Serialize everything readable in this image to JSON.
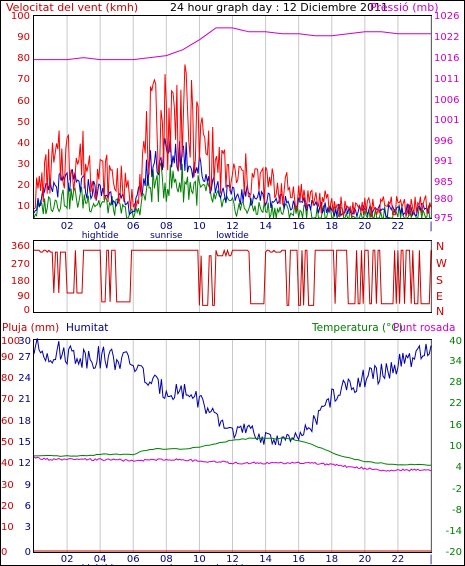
{
  "header": {
    "wind_title": "Velocitat del vent (kmh)",
    "graph_title": "24 hour graph day : 12 Diciembre 2011",
    "pressure_title": "Pressió (mb)"
  },
  "colors": {
    "wind_gust": "#ff0000",
    "wind_avg": "#0000cc",
    "wind_min": "#008000",
    "pressure": "#cc00cc",
    "direction": "#cc0000",
    "humidity": "#0000aa",
    "temperature": "#008000",
    "dewpoint": "#cc00cc",
    "rain": "#cc0000",
    "grid": "#c8c8c8",
    "frame": "#000000"
  },
  "x_axis": {
    "ticks": [
      "02",
      "04",
      "06",
      "08",
      "10",
      "12",
      "14",
      "16",
      "18",
      "20",
      "22",
      "|"
    ],
    "events": [
      {
        "label": "hightide",
        "at": "04"
      },
      {
        "label": "sunrise",
        "at": "08"
      },
      {
        "label": "lowtide",
        "at": "12"
      }
    ]
  },
  "chart_data": [
    {
      "type": "line",
      "title": "24 hour graph day : 12 Diciembre 2011",
      "left_axis_label": "Velocitat del vent (kmh)",
      "right_axis_label": "Pressió (mb)",
      "left_ticks": [
        "100",
        "90",
        "80",
        "70",
        "60",
        "50",
        "40",
        "30",
        "20",
        "10"
      ],
      "right_ticks": [
        "1026",
        "1022",
        "1016",
        "1011",
        "1006",
        "1001",
        "996",
        "991",
        "985",
        "980",
        "975"
      ],
      "ylim_left": [
        5,
        100
      ],
      "ylim_right": [
        975,
        1026
      ],
      "x_hours": [
        0,
        1,
        2,
        3,
        4,
        5,
        6,
        7,
        8,
        9,
        10,
        11,
        12,
        13,
        14,
        15,
        16,
        17,
        18,
        19,
        20,
        21,
        22,
        23,
        24
      ],
      "series": [
        {
          "key": "gust",
          "values": [
            15,
            28,
            34,
            32,
            25,
            23,
            13,
            45,
            52,
            53,
            42,
            30,
            23,
            24,
            21,
            19,
            16,
            14,
            11,
            10,
            10,
            10,
            11,
            11,
            11
          ]
        },
        {
          "key": "avg",
          "values": [
            10,
            19,
            22,
            20,
            17,
            15,
            8,
            30,
            35,
            36,
            28,
            20,
            15,
            16,
            14,
            13,
            12,
            10,
            9,
            8,
            8,
            8,
            9,
            9,
            9
          ]
        },
        {
          "key": "min",
          "values": [
            7,
            13,
            15,
            14,
            12,
            10,
            5,
            20,
            22,
            22,
            18,
            13,
            10,
            10,
            9,
            8,
            8,
            7,
            6,
            6,
            6,
            6,
            7,
            7,
            7
          ]
        },
        {
          "key": "pressure",
          "values": [
            1015,
            1015,
            1015,
            1015.5,
            1015,
            1015,
            1015,
            1015.5,
            1016,
            1017.5,
            1020,
            1023,
            1023,
            1022,
            1022,
            1021.5,
            1021.5,
            1021,
            1021,
            1021.5,
            1022,
            1022,
            1021.5,
            1021.5,
            1021.5
          ]
        }
      ]
    },
    {
      "type": "line",
      "left_ticks": [
        "360",
        "270",
        "180",
        "90",
        "0"
      ],
      "right_ticks": [
        "N",
        "W",
        "S",
        "E",
        "N"
      ],
      "ylim": [
        0,
        360
      ],
      "series": [
        {
          "key": "direction",
          "values": [
            330,
            320,
            90,
            330,
            330,
            40,
            330,
            330,
            330,
            330,
            20,
            300,
            330,
            30,
            320,
            330,
            20,
            330,
            330,
            30,
            330,
            30,
            330,
            30,
            330
          ]
        }
      ]
    },
    {
      "type": "line",
      "left_axis_label": "Pluja (mm)",
      "left2_axis_label": "Humitat",
      "right_axis_label": "Temperatura (°C)",
      "right2_axis_label": "Punt rosada",
      "rain_ticks": [
        "100",
        "90",
        "80",
        "70",
        "60",
        "50",
        "40",
        "30",
        "20",
        "10",
        "0"
      ],
      "humidity_ticks": [
        "30",
        "27",
        "24",
        "21",
        "18",
        "15",
        "12",
        "9",
        "6",
        "3",
        "0"
      ],
      "temp_ticks": [
        "40",
        "34",
        "28",
        "22",
        "16",
        "10",
        "4",
        "-2",
        "-8",
        "-14",
        "-20"
      ],
      "ylim_rain": [
        0,
        100
      ],
      "ylim_humidity": [
        0,
        30
      ],
      "ylim_temp": [
        -20,
        40
      ],
      "series": [
        {
          "key": "humidity",
          "values": [
            96,
            94,
            94,
            92,
            92,
            91,
            89,
            80,
            76,
            76,
            72,
            62,
            57,
            57,
            53,
            53,
            53,
            62,
            73,
            78,
            82,
            84,
            88,
            91,
            94
          ]
        },
        {
          "key": "temperature",
          "values": [
            7,
            7,
            7,
            7,
            7.5,
            7.5,
            7.5,
            9,
            9,
            9,
            9.5,
            10.5,
            11.5,
            12,
            12,
            12,
            11.5,
            10,
            8,
            6.5,
            5.5,
            5,
            4.5,
            4.5,
            4.5
          ]
        },
        {
          "key": "dewpoint",
          "values": [
            6.5,
            6,
            6,
            6,
            6,
            6,
            5.5,
            6,
            6,
            6,
            5.5,
            5.5,
            5,
            5,
            5,
            5,
            5,
            5,
            4.5,
            4,
            3.5,
            3,
            3,
            3,
            3
          ]
        },
        {
          "key": "rain",
          "values": [
            0,
            0,
            0,
            0,
            0,
            0,
            0,
            0,
            0,
            0,
            0,
            0,
            0,
            0,
            0,
            0,
            0,
            0,
            0,
            0,
            0,
            0,
            0,
            0,
            0
          ]
        }
      ]
    }
  ],
  "panel2": {
    "left_ticks": [
      "360",
      "270",
      "180",
      "90",
      "0"
    ],
    "right_ticks": [
      "N",
      "W",
      "S",
      "E",
      "N"
    ]
  },
  "panel3": {
    "rain_label": "Pluja (mm)",
    "humidity_label": "Humitat",
    "temperature_label": "Temperatura (°C)",
    "dewpoint_label": "Punt rosada"
  }
}
